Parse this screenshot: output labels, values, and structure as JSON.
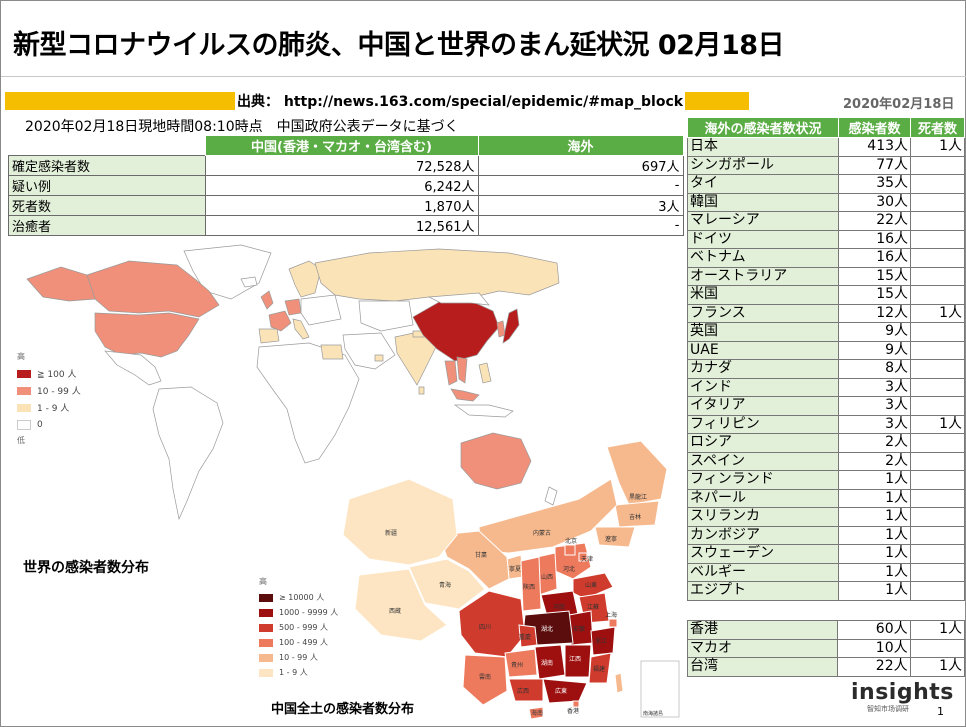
{
  "header": {
    "title": "新型コロナウイルスの肺炎、中国と世界のまん延状況 02月18日",
    "source": "出典： http://news.163.com/special/epidemic/#map_block",
    "date": "2020年02月18日",
    "asof": "2020年02月18日現地時間08:10時点　中国政府公表データに基づく"
  },
  "stats": {
    "headers": [
      "",
      "中国(香港・マカオ・台湾含む)",
      "海外"
    ],
    "rows": [
      {
        "label": "確定感染者数",
        "china": "72,528人",
        "overseas": "697人"
      },
      {
        "label": "疑い例",
        "china": "6,242人",
        "overseas": "-"
      },
      {
        "label": "死者数",
        "china": "1,870人",
        "overseas": "3人"
      },
      {
        "label": "治癒者",
        "china": "12,561人",
        "overseas": "-"
      }
    ]
  },
  "overseas": {
    "headers": [
      "海外の感染者数状況",
      "感染者数",
      "死者数"
    ],
    "rows": [
      {
        "country": "日本",
        "cases": "413人",
        "deaths": "1人"
      },
      {
        "country": "シンガポール",
        "cases": "77人",
        "deaths": ""
      },
      {
        "country": "タイ",
        "cases": "35人",
        "deaths": ""
      },
      {
        "country": "韓国",
        "cases": "30人",
        "deaths": ""
      },
      {
        "country": "マレーシア",
        "cases": "22人",
        "deaths": ""
      },
      {
        "country": "ドイツ",
        "cases": "16人",
        "deaths": ""
      },
      {
        "country": "ベトナム",
        "cases": "16人",
        "deaths": ""
      },
      {
        "country": "オーストラリア",
        "cases": "15人",
        "deaths": ""
      },
      {
        "country": "米国",
        "cases": "15人",
        "deaths": ""
      },
      {
        "country": "フランス",
        "cases": "12人",
        "deaths": "1人"
      },
      {
        "country": "英国",
        "cases": "9人",
        "deaths": ""
      },
      {
        "country": "UAE",
        "cases": "9人",
        "deaths": ""
      },
      {
        "country": "カナダ",
        "cases": "8人",
        "deaths": ""
      },
      {
        "country": "インド",
        "cases": "3人",
        "deaths": ""
      },
      {
        "country": "イタリア",
        "cases": "3人",
        "deaths": ""
      },
      {
        "country": "フィリピン",
        "cases": "3人",
        "deaths": "1人"
      },
      {
        "country": "ロシア",
        "cases": "2人",
        "deaths": ""
      },
      {
        "country": "スペイン",
        "cases": "2人",
        "deaths": ""
      },
      {
        "country": "フィンランド",
        "cases": "1人",
        "deaths": ""
      },
      {
        "country": "ネパール",
        "cases": "1人",
        "deaths": ""
      },
      {
        "country": "スリランカ",
        "cases": "1人",
        "deaths": ""
      },
      {
        "country": "カンボジア",
        "cases": "1人",
        "deaths": ""
      },
      {
        "country": "スウェーデン",
        "cases": "1人",
        "deaths": ""
      },
      {
        "country": "ベルギー",
        "cases": "1人",
        "deaths": ""
      },
      {
        "country": "エジプト",
        "cases": "1人",
        "deaths": ""
      }
    ]
  },
  "hk_macau_taiwan": [
    {
      "region": "香港",
      "cases": "60人",
      "deaths": "1人"
    },
    {
      "region": "マカオ",
      "cases": "10人",
      "deaths": ""
    },
    {
      "region": "台湾",
      "cases": "22人",
      "deaths": "1人"
    }
  ],
  "world_map": {
    "label": "世界の感染者数分布",
    "legend_top": "高",
    "legend_bottom": "低",
    "legend": [
      {
        "label": "≧ 100 人",
        "color": "#b81d1d"
      },
      {
        "label": "10 - 99 人",
        "color": "#f0907a"
      },
      {
        "label": "1 - 9 人",
        "color": "#fbe3b8"
      },
      {
        "label": "0",
        "color": "#ffffff"
      }
    ]
  },
  "china_map": {
    "label": "中国全土の感染者数分布",
    "legend_top": "高",
    "legend": [
      {
        "label": "≥ 10000 人",
        "color": "#5b0c0c"
      },
      {
        "label": "1000 - 9999 人",
        "color": "#9e1010"
      },
      {
        "label": "500 - 999 人",
        "color": "#cf3b2d"
      },
      {
        "label": "100 - 499 人",
        "color": "#ee7a5e"
      },
      {
        "label": "10 - 99 人",
        "color": "#f6b98e"
      },
      {
        "label": "1 - 9 人",
        "color": "#fde5c3"
      }
    ],
    "provinces": [
      "黒龍江",
      "吉林",
      "遼寧",
      "内蒙古",
      "北京",
      "天津",
      "河北",
      "山西",
      "山東",
      "寧夏",
      "甘粛",
      "陝西",
      "河南",
      "江蘇",
      "安徽",
      "上海",
      "湖北",
      "浙江",
      "新疆",
      "青海",
      "西蔵",
      "四川",
      "重慶",
      "湖南",
      "江西",
      "福建",
      "貴州",
      "雲南",
      "広西",
      "広東",
      "香港",
      "海南",
      "南海諸島"
    ]
  },
  "footer": {
    "logo_main": "insights",
    "logo_sub": "智知市场调研",
    "page": "1"
  }
}
